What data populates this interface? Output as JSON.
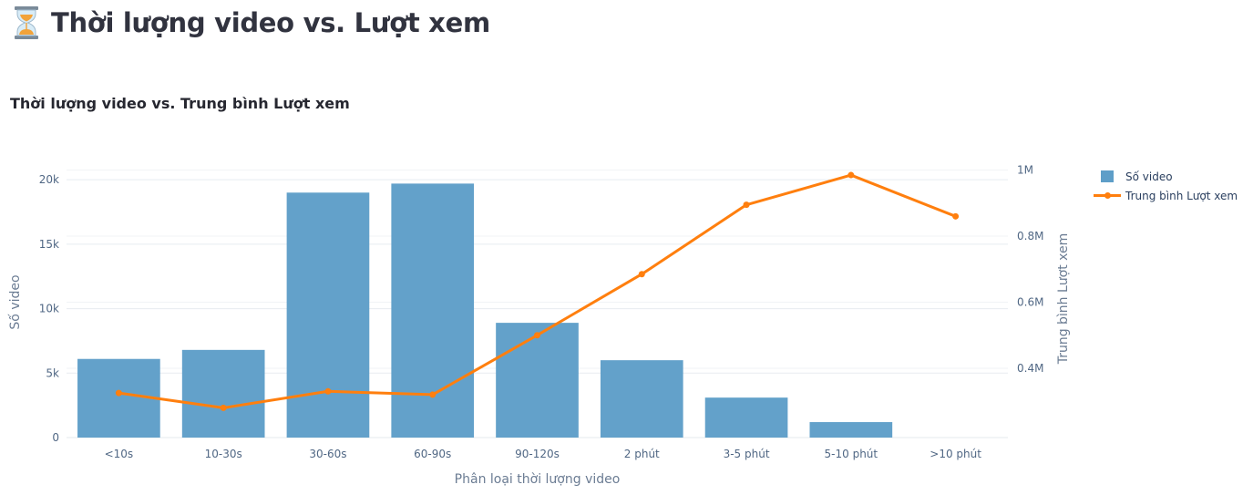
{
  "header": {
    "title": "Thời lượng video vs. Lượt xem",
    "icon": "hourglass-icon"
  },
  "chart_data": {
    "type": "bar",
    "title": "Thời lượng video vs. Trung bình Lượt xem",
    "xlabel": "Phân loại thời lượng video",
    "ylabel": "Số video",
    "y2label": "Trung bình Lượt xem",
    "categories": [
      "<10s",
      "10-30s",
      "30-60s",
      "60-90s",
      "90-120s",
      "2 phút",
      "3-5 phút",
      "5-10 phút",
      ">10 phút"
    ],
    "series": [
      {
        "name": "Số video",
        "type": "bar",
        "axis": "y",
        "color": "#5e9ec8",
        "values": [
          6100,
          6800,
          19000,
          19700,
          8900,
          6000,
          3100,
          1200,
          0
        ]
      },
      {
        "name": "Trung bình Lượt xem",
        "type": "line",
        "axis": "y2",
        "color": "#ff7f0e",
        "values": [
          325000,
          280000,
          330000,
          320000,
          500000,
          685000,
          895000,
          985000,
          860000
        ]
      }
    ],
    "ylim": [
      0,
      21000
    ],
    "y2lim": [
      190000,
      1010000
    ],
    "yticks": [
      {
        "value": 0,
        "label": "0"
      },
      {
        "value": 5000,
        "label": "5k"
      },
      {
        "value": 10000,
        "label": "10k"
      },
      {
        "value": 15000,
        "label": "15k"
      },
      {
        "value": 20000,
        "label": "20k"
      }
    ],
    "y2ticks": [
      {
        "value": 400000,
        "label": "0.4M"
      },
      {
        "value": 600000,
        "label": "0.6M"
      },
      {
        "value": 800000,
        "label": "0.8M"
      },
      {
        "value": 1000000,
        "label": "1M"
      }
    ],
    "grid": true,
    "legend_position": "top-right"
  }
}
